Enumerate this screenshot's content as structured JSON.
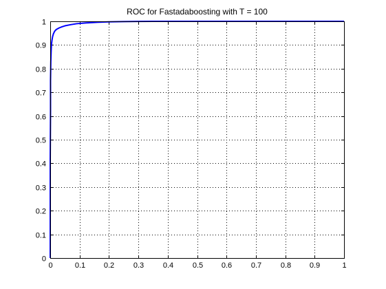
{
  "chart_data": {
    "type": "line",
    "title": "ROC for Fastadaboosting with T = 100",
    "xlabel": "",
    "ylabel": "",
    "xlim": [
      0,
      1
    ],
    "ylim": [
      0,
      1
    ],
    "xticks": [
      0,
      0.1,
      0.2,
      0.3,
      0.4,
      0.5,
      0.6,
      0.7,
      0.8,
      0.9,
      1
    ],
    "yticks": [
      0,
      0.1,
      0.2,
      0.3,
      0.4,
      0.5,
      0.6,
      0.7,
      0.8,
      0.9,
      1
    ],
    "xtick_labels": [
      "0",
      "0.1",
      "0.2",
      "0.3",
      "0.4",
      "0.5",
      "0.6",
      "0.7",
      "0.8",
      "0.9",
      "1"
    ],
    "ytick_labels": [
      "0",
      "0.1",
      "0.2",
      "0.3",
      "0.4",
      "0.5",
      "0.6",
      "0.7",
      "0.8",
      "0.9",
      "1"
    ],
    "grid": true,
    "legend": "none",
    "series": [
      {
        "color": "#0000ff",
        "x": [
          0,
          0,
          0.001,
          0.001,
          0.002,
          0.003,
          0.004,
          0.006,
          0.008,
          0.011,
          0.015,
          0.02,
          0.03,
          0.04,
          0.05,
          0.07,
          0.09,
          0.12,
          0.16,
          0.2,
          0.25,
          0.3,
          0.35,
          1
        ],
        "y": [
          0,
          0.42,
          0.62,
          0.75,
          0.83,
          0.87,
          0.9,
          0.92,
          0.935,
          0.948,
          0.958,
          0.965,
          0.972,
          0.977,
          0.981,
          0.986,
          0.99,
          0.993,
          0.996,
          0.998,
          0.999,
          0.9995,
          1,
          1
        ]
      }
    ]
  }
}
